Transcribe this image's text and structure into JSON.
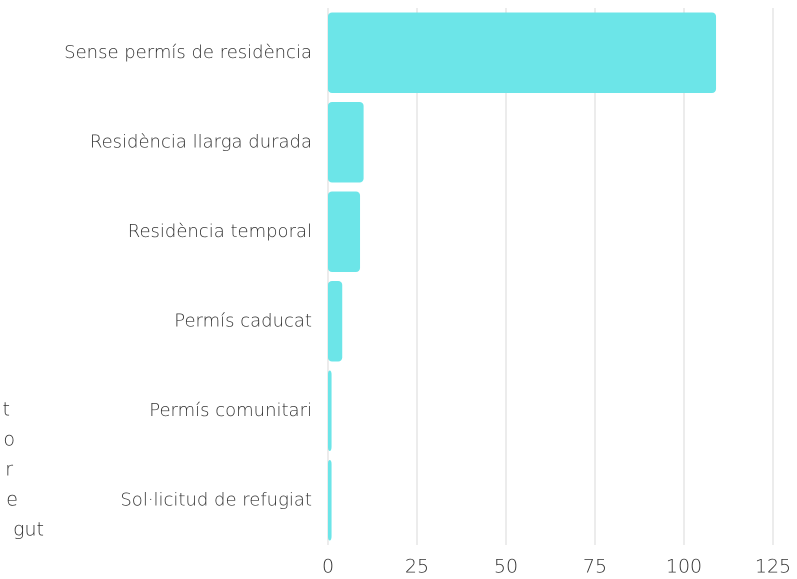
{
  "chart_data": {
    "type": "bar",
    "orientation": "horizontal",
    "categories": [
      "Sense permís de residència",
      "Residència llarga durada",
      "Residència temporal",
      "Permís caducat",
      "Permís comunitari",
      "Sol·licitud de refugiat"
    ],
    "values": [
      109,
      10,
      9,
      4,
      1,
      1
    ],
    "color": "#6ce5e8",
    "xlim": [
      0,
      125
    ],
    "xticks": [
      0,
      25,
      50,
      75,
      100,
      125
    ],
    "grid": true
  },
  "background_text": [
    "t",
    "o",
    "r",
    "e",
    "gut"
  ]
}
